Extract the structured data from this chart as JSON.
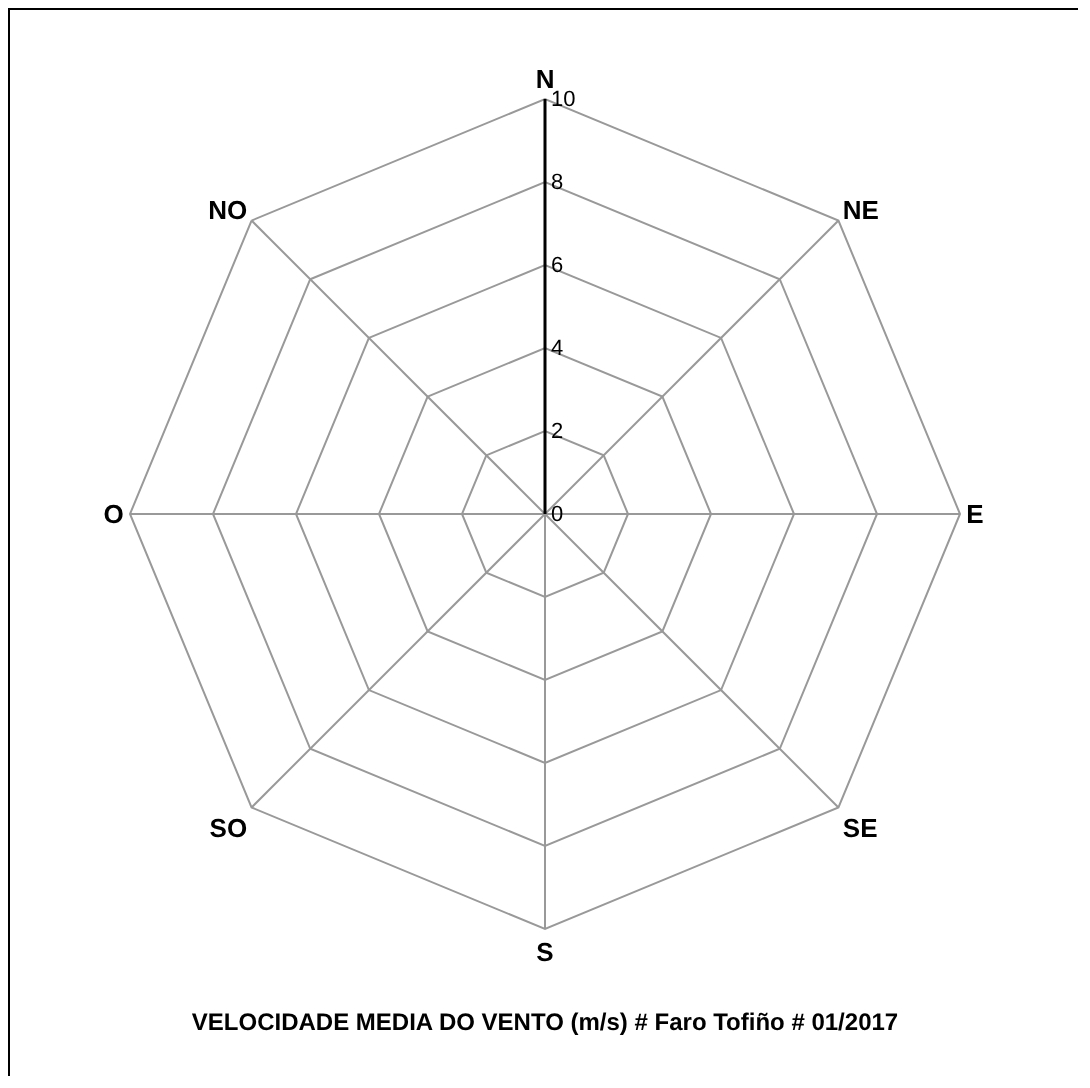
{
  "chart_data": {
    "type": "radar",
    "title": "VELOCIDADE MEDIA DO VENTO (m/s) # Faro Tofiño # 01/2017",
    "categories": [
      "N",
      "NE",
      "E",
      "SE",
      "S",
      "SO",
      "O",
      "NO"
    ],
    "series": [
      {
        "values": [
          null,
          null,
          null,
          null,
          null,
          null,
          null,
          null
        ]
      }
    ],
    "ylim": [
      0,
      10
    ],
    "yticks": [
      0,
      2,
      4,
      6,
      8,
      10
    ],
    "grid": true
  }
}
